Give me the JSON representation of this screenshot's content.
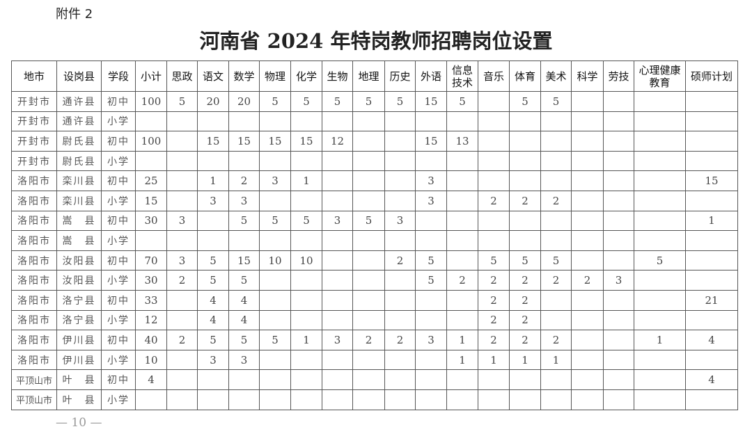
{
  "attachment_label": "附件 2",
  "title": "河南省 2024 年特岗教师招聘岗位设置",
  "table": {
    "headers": [
      "地市",
      "设岗县",
      "学段",
      "小计",
      "思政",
      "语文",
      "数学",
      "物理",
      "化学",
      "生物",
      "地理",
      "历史",
      "外语",
      "信息\n技术",
      "音乐",
      "体育",
      "美术",
      "科学",
      "劳技",
      "心理健康\n教育",
      "硕师计划"
    ],
    "rows": [
      [
        "开封市",
        "通许县",
        "初中",
        "100",
        "5",
        "20",
        "20",
        "5",
        "5",
        "5",
        "5",
        "5",
        "15",
        "5",
        "",
        "5",
        "5",
        "",
        "",
        "",
        ""
      ],
      [
        "开封市",
        "通许县",
        "小学",
        "",
        "",
        "",
        "",
        "",
        "",
        "",
        "",
        "",
        "",
        "",
        "",
        "",
        "",
        "",
        "",
        "",
        ""
      ],
      [
        "开封市",
        "尉氏县",
        "初中",
        "100",
        "",
        "15",
        "15",
        "15",
        "15",
        "12",
        "",
        "",
        "15",
        "13",
        "",
        "",
        "",
        "",
        "",
        "",
        ""
      ],
      [
        "开封市",
        "尉氏县",
        "小学",
        "",
        "",
        "",
        "",
        "",
        "",
        "",
        "",
        "",
        "",
        "",
        "",
        "",
        "",
        "",
        "",
        "",
        ""
      ],
      [
        "洛阳市",
        "栾川县",
        "初中",
        "25",
        "",
        "1",
        "2",
        "3",
        "1",
        "",
        "",
        "",
        "3",
        "",
        "",
        "",
        "",
        "",
        "",
        "",
        "15"
      ],
      [
        "洛阳市",
        "栾川县",
        "小学",
        "15",
        "",
        "3",
        "3",
        "",
        "",
        "",
        "",
        "",
        "3",
        "",
        "2",
        "2",
        "2",
        "",
        "",
        "",
        ""
      ],
      [
        "洛阳市",
        "嵩　县",
        "初中",
        "30",
        "3",
        "",
        "5",
        "5",
        "5",
        "3",
        "5",
        "3",
        "",
        "",
        "",
        "",
        "",
        "",
        "",
        "",
        "1"
      ],
      [
        "洛阳市",
        "嵩　县",
        "小学",
        "",
        "",
        "",
        "",
        "",
        "",
        "",
        "",
        "",
        "",
        "",
        "",
        "",
        "",
        "",
        "",
        "",
        ""
      ],
      [
        "洛阳市",
        "汝阳县",
        "初中",
        "70",
        "3",
        "5",
        "15",
        "10",
        "10",
        "",
        "",
        "2",
        "5",
        "",
        "5",
        "5",
        "5",
        "",
        "",
        "5",
        ""
      ],
      [
        "洛阳市",
        "汝阳县",
        "小学",
        "30",
        "2",
        "5",
        "5",
        "",
        "",
        "",
        "",
        "",
        "5",
        "2",
        "2",
        "2",
        "2",
        "2",
        "3",
        "",
        ""
      ],
      [
        "洛阳市",
        "洛宁县",
        "初中",
        "33",
        "",
        "4",
        "4",
        "",
        "",
        "",
        "",
        "",
        "",
        "",
        "2",
        "2",
        "",
        "",
        "",
        "",
        "21"
      ],
      [
        "洛阳市",
        "洛宁县",
        "小学",
        "12",
        "",
        "4",
        "4",
        "",
        "",
        "",
        "",
        "",
        "",
        "",
        "2",
        "2",
        "",
        "",
        "",
        "",
        ""
      ],
      [
        "洛阳市",
        "伊川县",
        "初中",
        "40",
        "2",
        "5",
        "5",
        "5",
        "1",
        "3",
        "2",
        "2",
        "3",
        "1",
        "2",
        "2",
        "2",
        "",
        "",
        "1",
        "4"
      ],
      [
        "洛阳市",
        "伊川县",
        "小学",
        "10",
        "",
        "3",
        "3",
        "",
        "",
        "",
        "",
        "",
        "",
        "1",
        "1",
        "1",
        "1",
        "",
        "",
        "",
        ""
      ],
      [
        "平顶山市",
        "叶　县",
        "初中",
        "4",
        "",
        "",
        "",
        "",
        "",
        "",
        "",
        "",
        "",
        "",
        "",
        "",
        "",
        "",
        "",
        "",
        "4"
      ],
      [
        "平顶山市",
        "叶　县",
        "小学",
        "",
        "",
        "",
        "",
        "",
        "",
        "",
        "",
        "",
        "",
        "",
        "",
        "",
        "",
        "",
        "",
        "",
        ""
      ]
    ]
  },
  "page_number": "— 10 —"
}
